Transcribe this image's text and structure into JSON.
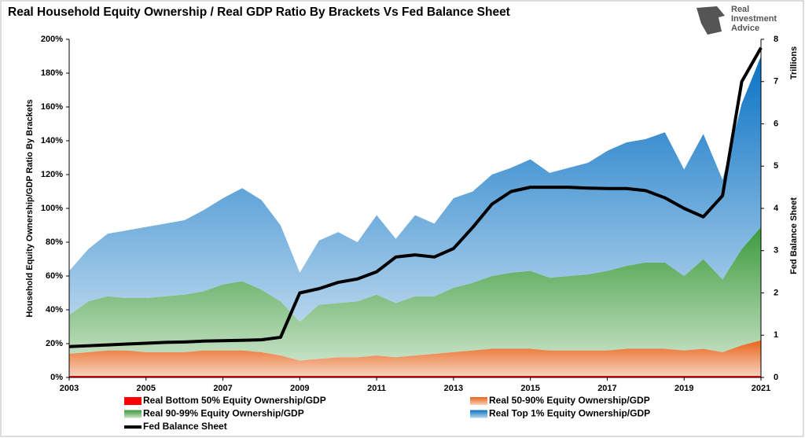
{
  "chart_data": {
    "type": "stacked-area",
    "title": "Real Household Equity Ownership / Real GDP Ratio By Brackets Vs Fed Balance Sheet",
    "logo": [
      "Real",
      "Investment",
      "Advice"
    ],
    "y_label": "Household Equity Ownership/GDP Ratio By Brackets",
    "y2_label": "Fed Balance Sheet",
    "y2_unit": "Trillions",
    "x": [
      2003,
      2003.5,
      2004,
      2004.5,
      2005,
      2005.5,
      2006,
      2006.5,
      2007,
      2007.5,
      2008,
      2008.5,
      2009,
      2009.5,
      2010,
      2010.5,
      2011,
      2011.5,
      2012,
      2012.5,
      2013,
      2013.5,
      2014,
      2014.5,
      2015,
      2015.5,
      2016,
      2016.5,
      2017,
      2017.5,
      2018,
      2018.5,
      2019,
      2019.5,
      2020,
      2020.5,
      2021
    ],
    "xlim": [
      2003,
      2021
    ],
    "xticks": [
      2003,
      2005,
      2007,
      2009,
      2011,
      2013,
      2015,
      2017,
      2019,
      2021
    ],
    "ylim": [
      0,
      200
    ],
    "yticks": [
      {
        "value": 0,
        "label": "0%"
      },
      {
        "value": 20,
        "label": "20%"
      },
      {
        "value": 40,
        "label": "40%"
      },
      {
        "value": 60,
        "label": "60%"
      },
      {
        "value": 80,
        "label": "80%"
      },
      {
        "value": 100,
        "label": "100%"
      },
      {
        "value": 120,
        "label": "120%"
      },
      {
        "value": 140,
        "label": "140%"
      },
      {
        "value": 160,
        "label": "160%"
      },
      {
        "value": 180,
        "label": "180%"
      },
      {
        "value": 200,
        "label": "200%"
      }
    ],
    "y2lim": [
      0,
      8
    ],
    "y2ticks": [
      0,
      1,
      2,
      3,
      4,
      5,
      6,
      7,
      8
    ],
    "series": [
      {
        "name": "Real Bottom 50% Equity Ownership/GDP",
        "color": "#ff0000",
        "values": [
          1,
          1,
          1,
          1,
          1,
          1,
          1,
          1,
          1,
          1,
          1,
          1,
          1,
          1,
          1,
          1,
          1,
          1,
          1,
          1,
          1,
          1,
          1,
          1,
          1,
          1,
          1,
          1,
          1,
          1,
          1,
          1,
          1,
          1,
          1,
          1,
          1
        ]
      },
      {
        "name": "Real 50-90% Equity Ownership/GDP",
        "color": "#e8641c",
        "values": [
          13,
          14,
          15,
          15,
          14,
          14,
          14,
          15,
          15,
          15,
          14,
          12,
          9,
          10,
          11,
          11,
          12,
          11,
          12,
          13,
          14,
          15,
          16,
          16,
          16,
          15,
          15,
          15,
          15,
          16,
          16,
          16,
          15,
          16,
          14,
          18,
          21
        ]
      },
      {
        "name": "Real 90-99% Equity Ownership/GDP",
        "color": "#3c9a3c",
        "values": [
          23,
          30,
          32,
          31,
          32,
          33,
          34,
          35,
          39,
          41,
          37,
          32,
          23,
          32,
          32,
          33,
          36,
          32,
          35,
          34,
          38,
          40,
          43,
          45,
          46,
          43,
          44,
          45,
          47,
          49,
          51,
          51,
          44,
          53,
          43,
          57,
          67
        ]
      },
      {
        "name": "Real Top 1% Equity Ownership/GDP",
        "color": "#0a72c4",
        "values": [
          26,
          31,
          37,
          40,
          42,
          43,
          44,
          48,
          51,
          55,
          53,
          45,
          29,
          38,
          42,
          35,
          47,
          38,
          48,
          43,
          53,
          54,
          60,
          62,
          66,
          62,
          64,
          66,
          71,
          73,
          73,
          77,
          63,
          74,
          59,
          86,
          101
        ]
      },
      {
        "name": "Fed Balance Sheet",
        "color": "#000000",
        "axis": "y2",
        "values": [
          0.73,
          0.75,
          0.77,
          0.79,
          0.81,
          0.83,
          0.84,
          0.86,
          0.87,
          0.88,
          0.89,
          0.95,
          2.0,
          2.1,
          2.25,
          2.33,
          2.5,
          2.85,
          2.9,
          2.85,
          3.05,
          3.55,
          4.1,
          4.4,
          4.5,
          4.5,
          4.5,
          4.48,
          4.47,
          4.47,
          4.42,
          4.25,
          4.0,
          3.8,
          4.3,
          7.0,
          7.8
        ]
      }
    ]
  }
}
